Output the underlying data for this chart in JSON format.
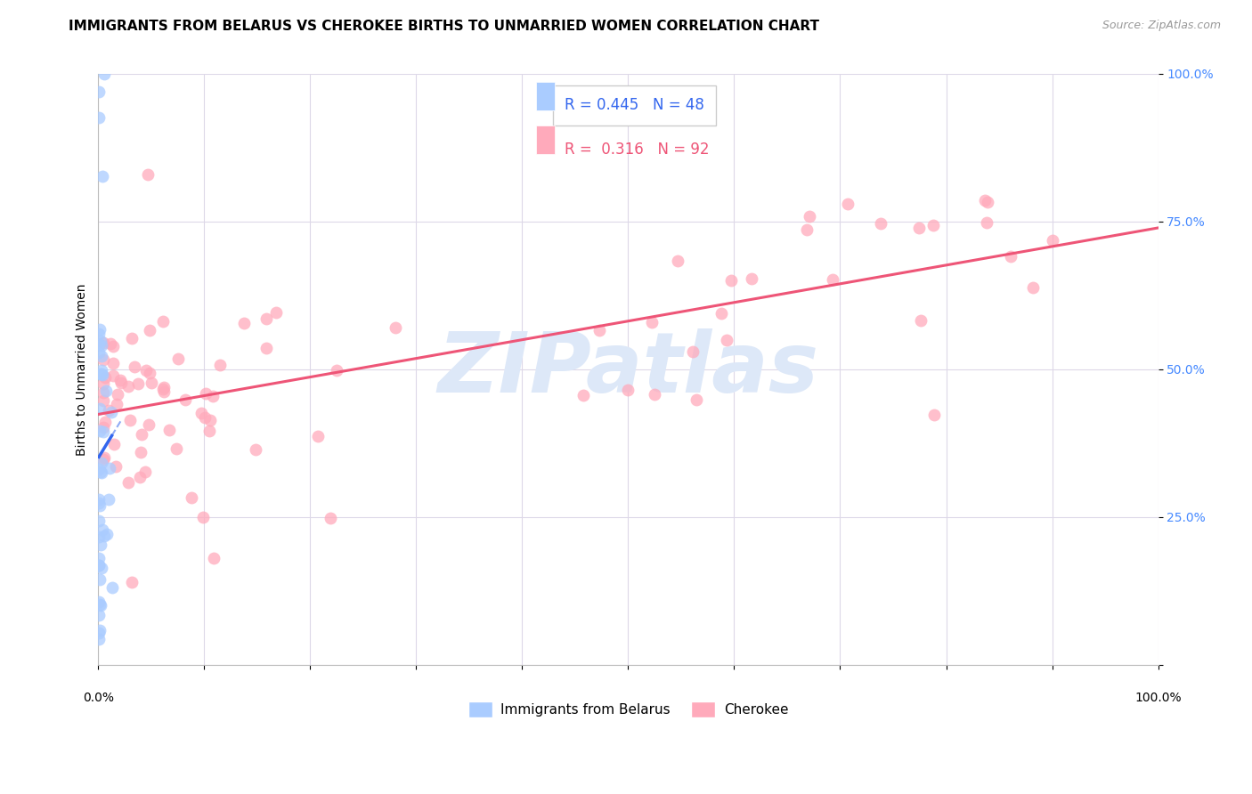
{
  "title": "IMMIGRANTS FROM BELARUS VS CHEROKEE BIRTHS TO UNMARRIED WOMEN CORRELATION CHART",
  "source": "Source: ZipAtlas.com",
  "ylabel": "Births to Unmarried Women",
  "xlim": [
    0.0,
    1.0
  ],
  "ylim": [
    0.0,
    1.0
  ],
  "yticks": [
    0.0,
    0.25,
    0.5,
    0.75,
    1.0
  ],
  "ytick_labels": [
    "",
    "25.0%",
    "50.0%",
    "75.0%",
    "100.0%"
  ],
  "grid_color": "#ddd8e8",
  "background_color": "#ffffff",
  "legend_R_blue": "0.445",
  "legend_N_blue": "48",
  "legend_R_pink": "0.316",
  "legend_N_pink": "92",
  "blue_color": "#aaccff",
  "pink_color": "#ffaabb",
  "blue_line_color": "#3366ee",
  "pink_line_color": "#ee5577",
  "watermark_text": "ZIPatlas",
  "watermark_color": "#dde8f8",
  "blue_scatter_seed": 42,
  "pink_scatter_seed": 99,
  "title_fontsize": 11,
  "source_fontsize": 9,
  "tick_fontsize": 10,
  "ylabel_fontsize": 10,
  "legend_fontsize": 11,
  "marker_size": 100,
  "marker_alpha": 0.75
}
